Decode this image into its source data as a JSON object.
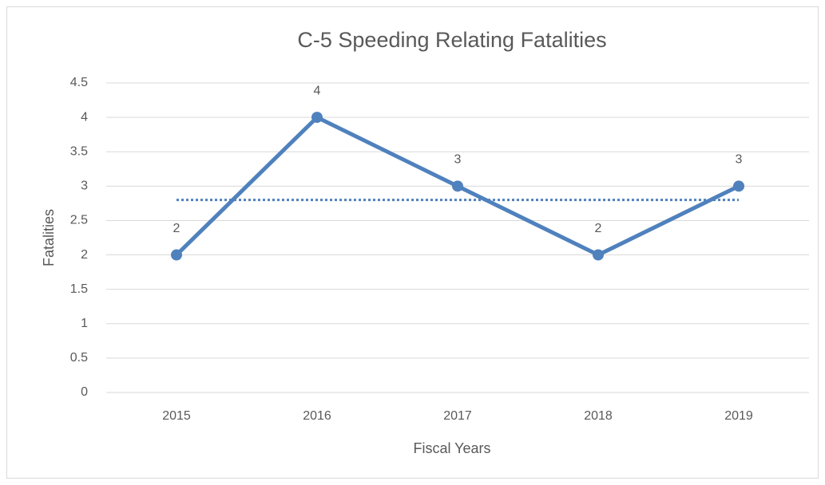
{
  "chart_data": {
    "type": "line",
    "title": "C-5 Speeding Relating Fatalities",
    "x_label": "Fiscal Years",
    "y_label": "Fatalities",
    "categories": [
      "2015",
      "2016",
      "2017",
      "2018",
      "2019"
    ],
    "series": [
      {
        "name": "Fatalities",
        "color": "#4f81bd",
        "values": [
          2,
          4,
          3,
          2,
          3
        ]
      }
    ],
    "reference_line": {
      "value": 2.8,
      "color": "#4f81bd",
      "style": "dotted"
    },
    "ylim": [
      0,
      4.5
    ],
    "yticks": [
      0,
      0.5,
      1,
      1.5,
      2,
      2.5,
      3,
      3.5,
      4,
      4.5
    ],
    "grid": true,
    "data_labels": true,
    "legend": false
  }
}
